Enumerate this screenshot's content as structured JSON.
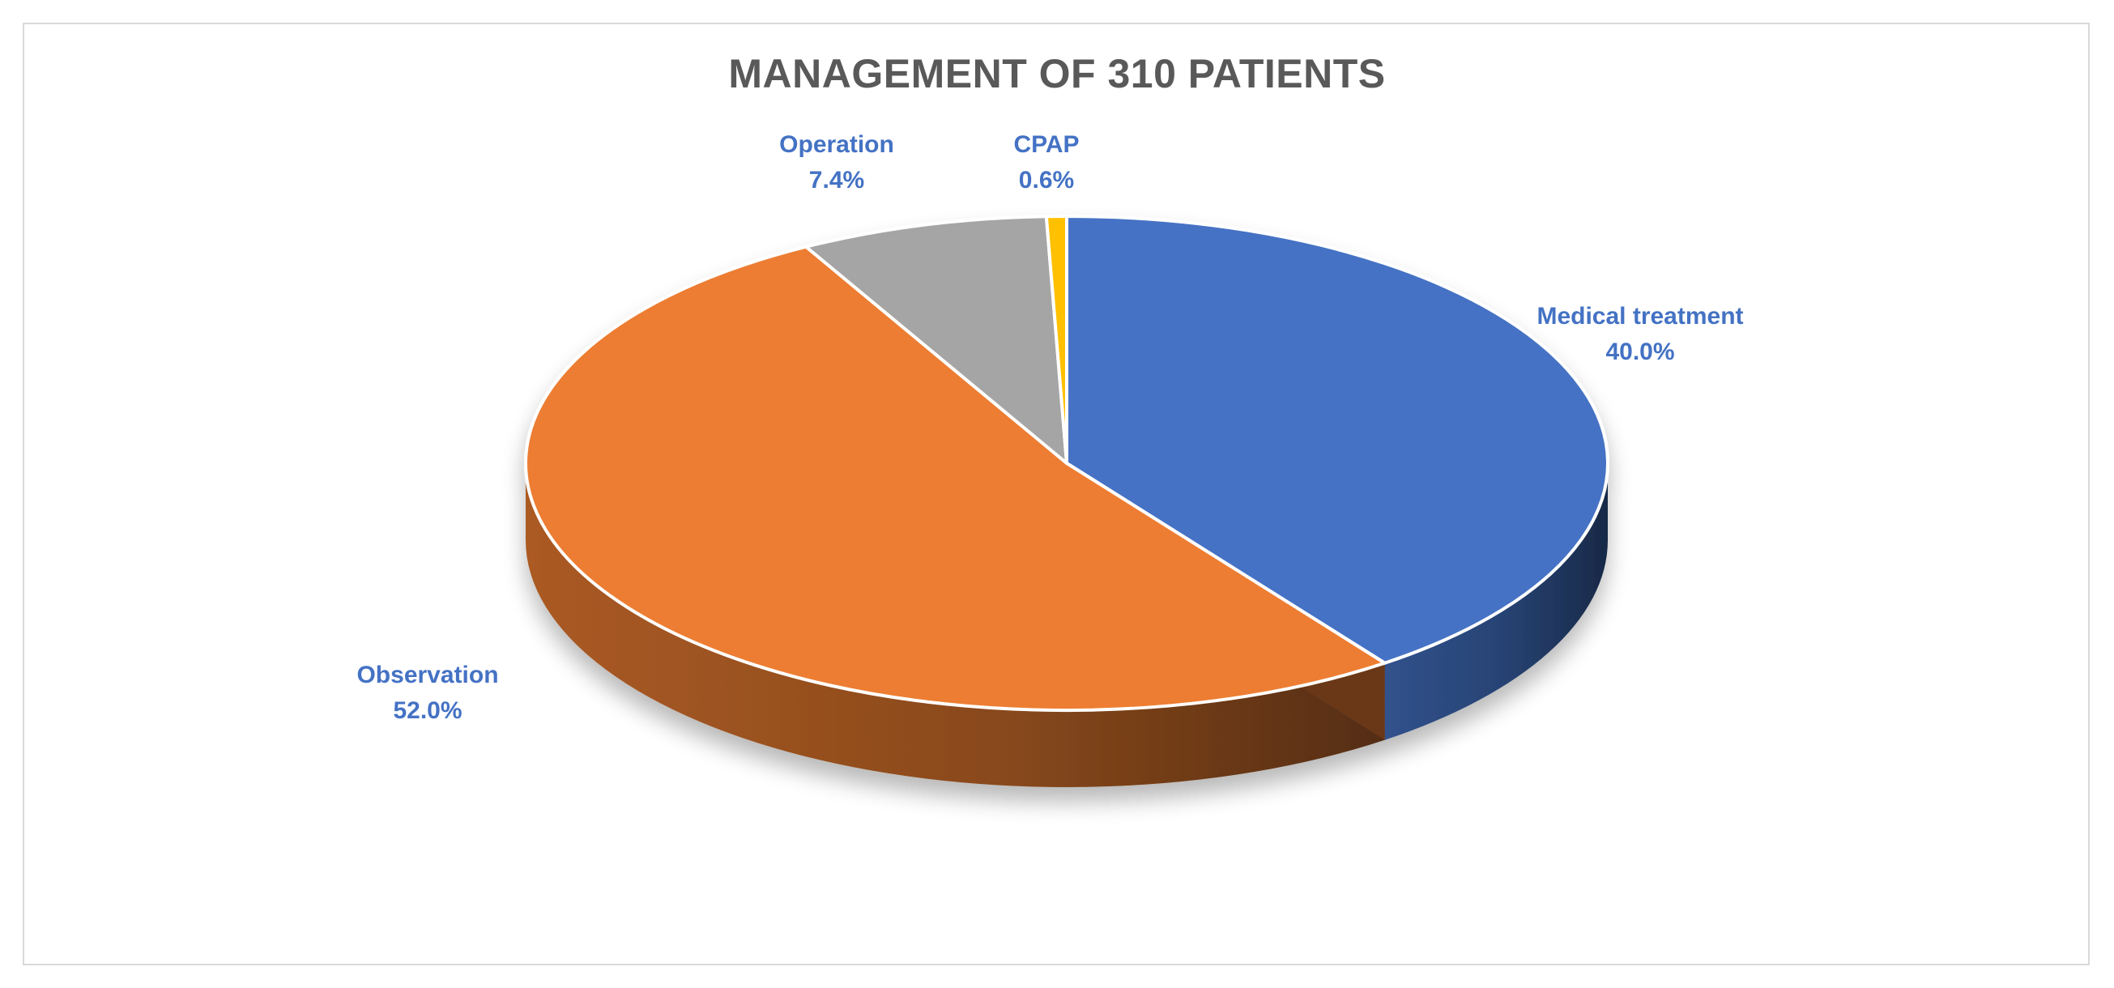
{
  "chart_data": {
    "type": "pie",
    "title": "MANAGEMENT OF 310 PATIENTS",
    "slices": [
      {
        "label": "Medical treatment",
        "value": 40.0,
        "display": "40.0%",
        "color": "#4472c4"
      },
      {
        "label": "Observation",
        "value": 52.0,
        "display": "52.0%",
        "color": "#ed7d31"
      },
      {
        "label": "Operation",
        "value": 7.4,
        "display": "7.4%",
        "color": "#a5a5a5"
      },
      {
        "label": "CPAP",
        "value": 0.6,
        "display": "0.6%",
        "color": "#ffc000"
      }
    ],
    "legend": "none",
    "style": "3d-pie"
  }
}
